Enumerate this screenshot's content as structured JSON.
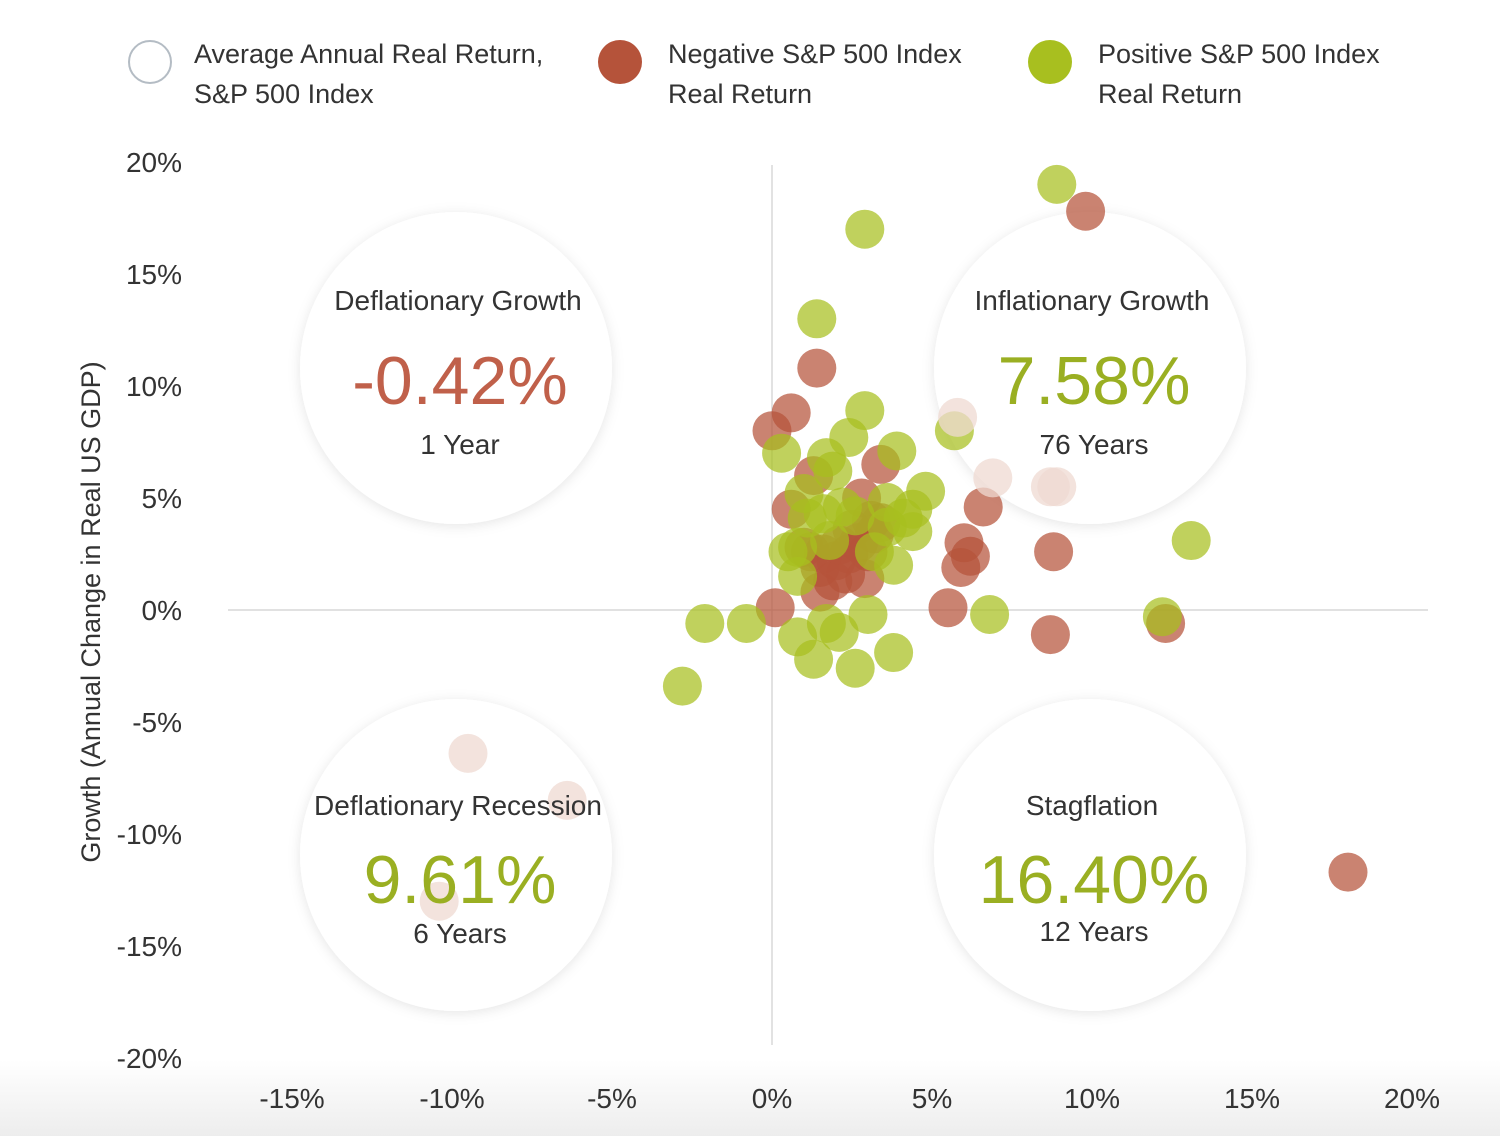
{
  "legend": [
    {
      "line1": "Average Annual Real Return,",
      "line2": "S&P 500 Index",
      "swatch": "outline"
    },
    {
      "line1": "Negative S&P 500 Index",
      "line2": "Real Return",
      "swatch": "negative"
    },
    {
      "line1": "Positive S&P 500 Index",
      "line2": "Real Return",
      "swatch": "positive"
    }
  ],
  "colors": {
    "negative": "#b5533a",
    "positive": "#a8bf1f",
    "average_value": "#c0604a",
    "positive_value": "#9aaf22",
    "axis": "#cfcfcf",
    "text": "#333333"
  },
  "quadrants": [
    {
      "name": "Deflationary Growth",
      "value": "-0.42%",
      "years": "1 Year",
      "value_color": "negative"
    },
    {
      "name": "Inflationary Growth",
      "value": "7.58%",
      "years": "76 Years",
      "value_color": "positive"
    },
    {
      "name": "Deflationary Recession",
      "value": "9.61%",
      "years": "6 Years",
      "value_color": "positive"
    },
    {
      "name": "Stagflation",
      "value": "16.40%",
      "years": "12 Years",
      "value_color": "positive"
    }
  ],
  "chart_data": {
    "type": "scatter",
    "title": "",
    "xlabel": "",
    "ylabel": "Growth (Annual Change in Real US GDP)",
    "xlim": [
      -17,
      20
    ],
    "ylim": [
      -20,
      20
    ],
    "x_ticks": [
      "-15%",
      "-10%",
      "-5%",
      "0%",
      "5%",
      "10%",
      "15%",
      "20%"
    ],
    "x_tick_values": [
      -15,
      -10,
      -5,
      0,
      5,
      10,
      15,
      20
    ],
    "y_ticks": [
      "20%",
      "15%",
      "10%",
      "5%",
      "0%",
      "-5%",
      "-10%",
      "-15%",
      "-20%"
    ],
    "y_tick_values": [
      20,
      15,
      10,
      5,
      0,
      -5,
      -10,
      -15,
      -20
    ],
    "grid": false,
    "series": [
      {
        "name": "Negative S&P 500 Index Real Return",
        "color": "negative",
        "points": [
          [
            9.8,
            17.8
          ],
          [
            1.4,
            10.8
          ],
          [
            0.6,
            8.8
          ],
          [
            0,
            8.0
          ],
          [
            3.4,
            6.5
          ],
          [
            1.3,
            6.0
          ],
          [
            2.8,
            5.0
          ],
          [
            6.6,
            4.6
          ],
          [
            0.6,
            4.5
          ],
          [
            3.1,
            4.0
          ],
          [
            3.4,
            3.9
          ],
          [
            2.5,
            3.6
          ],
          [
            6.0,
            3.0
          ],
          [
            1.0,
            2.8
          ],
          [
            1.6,
            2.5
          ],
          [
            2.0,
            2.2
          ],
          [
            2.4,
            2.5
          ],
          [
            3.0,
            2.6
          ],
          [
            6.2,
            2.4
          ],
          [
            5.9,
            1.9
          ],
          [
            1.5,
            1.9
          ],
          [
            2.3,
            1.6
          ],
          [
            2.9,
            1.4
          ],
          [
            1.9,
            1.3
          ],
          [
            8.8,
            2.6
          ],
          [
            1.5,
            0.8
          ],
          [
            0.1,
            0.1
          ],
          [
            5.5,
            0.1
          ],
          [
            12.3,
            -0.6
          ],
          [
            8.7,
            -1.1
          ],
          [
            18.0,
            -11.7
          ],
          [
            1.2,
            2.6
          ],
          [
            2.7,
            3.0
          ],
          [
            3.2,
            3.4
          ],
          [
            2.1,
            2.9
          ]
        ]
      },
      {
        "name": "Positive S&P 500 Index Real Return",
        "color": "positive",
        "points": [
          [
            8.9,
            19.0
          ],
          [
            2.9,
            17.0
          ],
          [
            1.4,
            13.0
          ],
          [
            2.9,
            8.9
          ],
          [
            5.7,
            8.0
          ],
          [
            2.4,
            7.7
          ],
          [
            0.3,
            7.0
          ],
          [
            3.9,
            7.1
          ],
          [
            1.7,
            6.8
          ],
          [
            1.9,
            6.2
          ],
          [
            4.8,
            5.3
          ],
          [
            4.4,
            4.5
          ],
          [
            1.6,
            4.3
          ],
          [
            4.1,
            4.1
          ],
          [
            4.4,
            3.5
          ],
          [
            3.6,
            3.7
          ],
          [
            1.1,
            4.1
          ],
          [
            1.8,
            3.1
          ],
          [
            0.8,
            2.8
          ],
          [
            0.5,
            2.6
          ],
          [
            3.2,
            2.6
          ],
          [
            3.8,
            2.0
          ],
          [
            13.1,
            3.1
          ],
          [
            0.8,
            1.5
          ],
          [
            -2.1,
            -0.6
          ],
          [
            -0.8,
            -0.6
          ],
          [
            0.8,
            -1.2
          ],
          [
            1.7,
            -0.6
          ],
          [
            2.1,
            -1.0
          ],
          [
            3.0,
            -0.2
          ],
          [
            6.8,
            -0.2
          ],
          [
            12.2,
            -0.3
          ],
          [
            1.3,
            -2.2
          ],
          [
            2.6,
            -2.6
          ],
          [
            3.8,
            -1.9
          ],
          [
            -2.8,
            -3.4
          ],
          [
            1.0,
            5.2
          ],
          [
            2.2,
            4.6
          ],
          [
            3.6,
            4.8
          ],
          [
            2.6,
            4.2
          ]
        ]
      },
      {
        "name": "Average Annual Real Return, S&P 500 Index",
        "color": "outline",
        "points": [
          [
            5.8,
            8.6
          ],
          [
            6.9,
            5.9
          ],
          [
            8.7,
            5.5
          ],
          [
            8.9,
            5.5
          ],
          [
            -9.5,
            -6.4
          ],
          [
            -6.4,
            -8.5
          ],
          [
            -10.4,
            -13.0
          ]
        ]
      }
    ]
  }
}
